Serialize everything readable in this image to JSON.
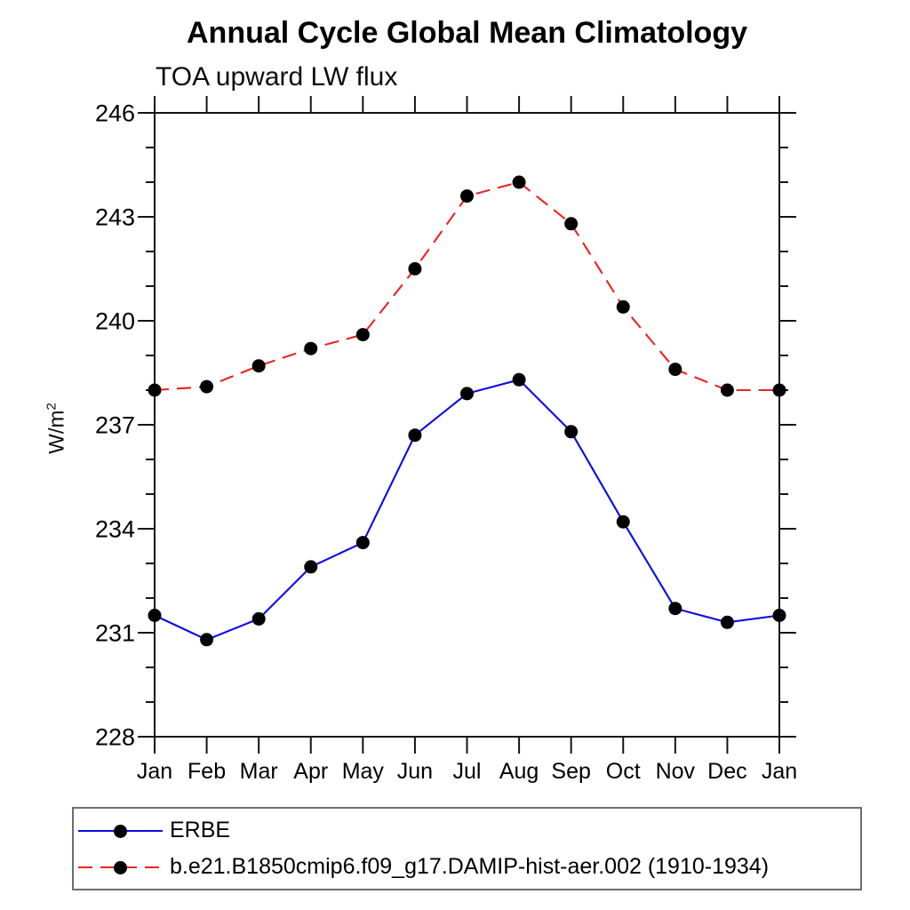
{
  "page": {
    "title": "Annual Cycle Global Mean Climatology",
    "subtitle": "TOA upward LW flux",
    "ylabel_base": "W/m",
    "ylabel_exp": "2"
  },
  "chart_data": {
    "type": "line",
    "title": "Annual Cycle Global Mean Climatology",
    "subtitle": "TOA upward LW flux",
    "xlabel": "",
    "ylabel": "W/m2",
    "categories": [
      "Jan",
      "Feb",
      "Mar",
      "Apr",
      "May",
      "Jun",
      "Jul",
      "Aug",
      "Sep",
      "Oct",
      "Nov",
      "Dec",
      "Jan"
    ],
    "ylim": [
      228,
      246
    ],
    "ytick_major": [
      228,
      231,
      234,
      237,
      240,
      243,
      246
    ],
    "ytick_minor_step": 1,
    "grid": false,
    "legend_position": "bottom",
    "series": [
      {
        "name": "ERBE",
        "color": "#0a0ae6",
        "line_style": "solid",
        "marker": "black-dot",
        "marker_color": "#000000",
        "values": [
          231.5,
          230.8,
          231.4,
          232.9,
          233.6,
          236.7,
          237.9,
          238.3,
          236.8,
          234.2,
          231.7,
          231.3,
          231.5
        ]
      },
      {
        "name": "b.e21.B1850cmip6.f09_g17.DAMIP-hist-aer.002 (1910-1934)",
        "color": "#ee2222",
        "line_style": "dashed",
        "marker": "black-dot",
        "marker_color": "#000000",
        "values": [
          238.0,
          238.1,
          238.7,
          239.2,
          239.6,
          241.5,
          243.6,
          244.0,
          242.8,
          240.4,
          238.6,
          238.0,
          238.0
        ]
      }
    ]
  }
}
